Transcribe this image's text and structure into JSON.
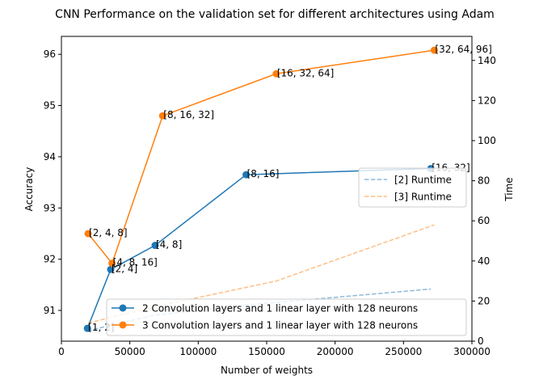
{
  "chart_data": {
    "type": "line",
    "title": "CNN Performance on the validation set for different architectures using Adam",
    "xlabel": "Number of weights",
    "ylabel": "Accuracy",
    "ylabel_right": "Time",
    "xlim": [
      0,
      300000
    ],
    "ylim": [
      90.4,
      96.35
    ],
    "ylim_right": [
      0,
      152
    ],
    "x_ticks": [
      0,
      50000,
      100000,
      150000,
      200000,
      250000,
      300000
    ],
    "y_ticks": [
      91,
      92,
      93,
      94,
      95,
      96
    ],
    "y_ticks_right": [
      0,
      20,
      40,
      60,
      80,
      100,
      120,
      140
    ],
    "grid": false,
    "legend_lower": {
      "placement": "lower-right",
      "entries": [
        "2 Convolution layers and 1 linear layer with 128 neurons",
        "3 Convolution layers and 1 linear layer with 128 neurons"
      ]
    },
    "legend_upper": {
      "placement": "center-right",
      "entries": [
        "[2] Runtime",
        "[3] Runtime"
      ]
    },
    "series": [
      {
        "name": "2 Convolution layers and 1 linear layer with 128 neurons",
        "axis": "left",
        "color": "#1f77b4",
        "style": "solid-markers",
        "x": [
          19000,
          36000,
          68500,
          135000,
          270000
        ],
        "y": [
          90.65,
          91.8,
          92.27,
          93.65,
          93.77
        ],
        "labels": [
          "[1, 2]",
          "[2, 4]",
          "[4, 8]",
          "[8, 16]",
          "[16, 32]"
        ]
      },
      {
        "name": "3 Convolution layers and 1 linear layer with 128 neurons",
        "axis": "left",
        "color": "#ff7f0e",
        "style": "solid-markers",
        "x": [
          19500,
          37000,
          74000,
          157000,
          272500
        ],
        "y": [
          92.5,
          91.92,
          94.8,
          95.62,
          96.08
        ],
        "labels": [
          "[2, 4, 8]",
          "[4, 8, 16]",
          "[8, 16, 32]",
          "[16, 32, 64]",
          "[32, 64, 96]"
        ]
      },
      {
        "name": "[2] Runtime",
        "axis": "right",
        "color": "#1f77b4",
        "style": "dashed",
        "x": [
          19000,
          36000,
          68500,
          135000,
          270000
        ],
        "y": [
          5,
          8,
          13,
          18,
          26
        ]
      },
      {
        "name": "[3] Runtime",
        "axis": "right",
        "color": "#ff7f0e",
        "style": "dashed",
        "x": [
          19500,
          37000,
          74000,
          157000,
          272500
        ],
        "y": [
          9,
          12,
          18,
          30,
          58
        ]
      }
    ]
  }
}
